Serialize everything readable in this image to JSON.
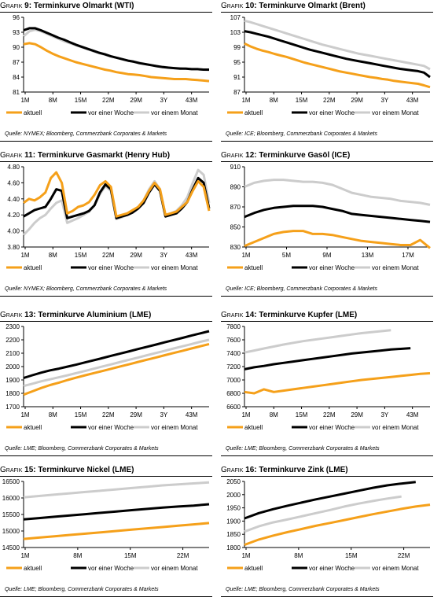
{
  "colors": {
    "aktuell": "#f5a01a",
    "woche": "#000000",
    "monat": "#cccccc",
    "grid": "#bfbfbf"
  },
  "title_prefix": "Grafik",
  "charts": [
    {
      "number": "9:",
      "title": "Terminkurve Olmarkt (WTI)",
      "source": "Quelle: NYMEX; Bloomberg, Commerzbank Corporates & Markets",
      "chart_data": {
        "type": "line",
        "xticks": [
          "1M",
          "8M",
          "15M",
          "22M",
          "29M",
          "3Y",
          "43M"
        ],
        "yticks": [
          81,
          84,
          87,
          90,
          93,
          96
        ],
        "ylim": [
          81,
          96
        ],
        "legend": [
          "aktuell",
          "vor einer Woche",
          "vor einem Monat"
        ],
        "series": [
          {
            "key": "aktuell",
            "values": [
              90.6,
              90.8,
              90.6,
              90.0,
              89.3,
              88.7,
              88.2,
              87.8,
              87.4,
              87.0,
              86.7,
              86.4,
              86.1,
              85.8,
              85.5,
              85.3,
              85.0,
              84.8,
              84.6,
              84.5,
              84.4,
              84.2,
              84.0,
              83.9,
              83.8,
              83.7,
              83.6,
              83.6,
              83.6,
              83.5,
              83.4,
              83.3,
              83.2
            ]
          },
          {
            "key": "woche",
            "values": [
              93.4,
              93.8,
              93.8,
              93.4,
              92.9,
              92.4,
              91.9,
              91.5,
              91.0,
              90.5,
              90.1,
              89.7,
              89.3,
              88.9,
              88.6,
              88.2,
              87.9,
              87.6,
              87.3,
              87.1,
              86.8,
              86.6,
              86.4,
              86.2,
              86.0,
              85.9,
              85.8,
              85.7,
              85.7,
              85.6,
              85.6,
              85.5,
              85.5
            ]
          },
          {
            "key": "monat",
            "values": [
              92.2,
              93.2,
              93.5,
              93.2,
              92.7,
              92.2,
              91.7,
              91.2,
              90.8,
              90.4,
              90.0,
              89.6,
              89.2,
              88.8,
              88.5,
              88.2,
              87.9,
              87.6,
              87.3,
              87.1,
              86.9,
              86.6,
              86.4,
              86.2,
              86.1,
              85.9,
              85.8,
              85.8,
              85.7,
              85.6,
              85.6,
              85.5,
              85.4
            ]
          }
        ]
      }
    },
    {
      "number": "10:",
      "title": "Terminkurve Olmarkt (Brent)",
      "source": "Quelle: ICE; Bloomberg, Commerzbank Corporates & Markets",
      "chart_data": {
        "type": "line",
        "xticks": [
          "1M",
          "8M",
          "15M",
          "22M",
          "29M",
          "3Y",
          "43M"
        ],
        "yticks": [
          87,
          91,
          95,
          99,
          103,
          107
        ],
        "ylim": [
          87,
          107
        ],
        "legend": [
          "aktuell",
          "vor einer Woche",
          "vor einem Monat"
        ],
        "series": [
          {
            "key": "aktuell",
            "values": [
              100.0,
              99.2,
              98.6,
              98.1,
              97.7,
              97.2,
              96.8,
              96.4,
              95.9,
              95.4,
              94.9,
              94.5,
              94.1,
              93.7,
              93.3,
              92.9,
              92.5,
              92.2,
              91.9,
              91.6,
              91.3,
              91.0,
              90.8,
              90.5,
              90.3,
              90.0,
              89.8,
              89.6,
              89.4,
              89.2,
              88.8,
              88.3
            ]
          },
          {
            "key": "woche",
            "values": [
              103.3,
              103.0,
              102.6,
              102.2,
              101.8,
              101.3,
              100.8,
              100.3,
              99.8,
              99.3,
              98.8,
              98.3,
              97.9,
              97.5,
              97.1,
              96.7,
              96.3,
              95.9,
              95.6,
              95.3,
              95.0,
              94.7,
              94.4,
              94.1,
              93.8,
              93.5,
              93.2,
              93.0,
              92.8,
              92.6,
              92.2,
              91.0
            ]
          },
          {
            "key": "monat",
            "values": [
              106.1,
              105.7,
              105.2,
              104.7,
              104.2,
              103.7,
              103.2,
              102.7,
              102.2,
              101.7,
              101.2,
              100.7,
              100.2,
              99.7,
              99.3,
              98.9,
              98.5,
              98.1,
              97.7,
              97.3,
              97.0,
              96.7,
              96.4,
              96.1,
              95.8,
              95.5,
              95.2,
              94.9,
              94.6,
              94.3,
              94.0,
              93.1
            ]
          }
        ]
      }
    },
    {
      "number": "11:",
      "title": "Terminkurve Gasmarkt (Henry Hub)",
      "source": "Quelle: NYMEX; Bloomberg, Commerzbank Corporates & Markets",
      "chart_data": {
        "type": "line",
        "xticks": [
          "1M",
          "8M",
          "15M",
          "22M",
          "29M",
          "3Y",
          "43M"
        ],
        "yticks": [
          3.8,
          4.0,
          4.2,
          4.4,
          4.6,
          4.8
        ],
        "yfmt": 2,
        "ylim": [
          3.8,
          4.8
        ],
        "legend": [
          "aktuell",
          "vor einer Woche",
          "vor einem Monat"
        ],
        "series": [
          {
            "key": "aktuell",
            "values": [
              4.35,
              4.4,
              4.38,
              4.42,
              4.48,
              4.66,
              4.73,
              4.6,
              4.22,
              4.25,
              4.3,
              4.32,
              4.36,
              4.45,
              4.57,
              4.62,
              4.55,
              4.18,
              4.2,
              4.22,
              4.26,
              4.3,
              4.38,
              4.5,
              4.6,
              4.52,
              4.2,
              4.22,
              4.24,
              4.3,
              4.36,
              4.5,
              4.62,
              4.55,
              4.25
            ]
          },
          {
            "key": "woche",
            "values": [
              4.18,
              4.22,
              4.26,
              4.28,
              4.3,
              4.4,
              4.52,
              4.5,
              4.16,
              4.18,
              4.2,
              4.22,
              4.25,
              4.32,
              4.48,
              4.58,
              4.52,
              4.16,
              4.18,
              4.2,
              4.23,
              4.28,
              4.35,
              4.48,
              4.58,
              4.5,
              4.18,
              4.2,
              4.22,
              4.28,
              4.36,
              4.52,
              4.66,
              4.6,
              4.28
            ]
          },
          {
            "key": "monat",
            "values": [
              3.95,
              4.02,
              4.1,
              4.16,
              4.2,
              4.28,
              4.35,
              4.38,
              4.1,
              4.13,
              4.16,
              4.2,
              4.24,
              4.32,
              4.46,
              4.56,
              4.5,
              4.15,
              4.17,
              4.2,
              4.25,
              4.3,
              4.38,
              4.52,
              4.62,
              4.52,
              4.2,
              4.22,
              4.25,
              4.32,
              4.42,
              4.6,
              4.76,
              4.7,
              4.35
            ]
          }
        ]
      }
    },
    {
      "number": "12:",
      "title": "Terminkurve Gasöl (ICE)",
      "source": "Quelle: ICE; Bloomberg, Commerzbank Corporates & Markets",
      "chart_data": {
        "type": "line",
        "xticks": [
          "1M",
          "5M",
          "9M",
          "13M",
          "17M"
        ],
        "yticks": [
          830,
          850,
          870,
          890,
          910
        ],
        "ylim": [
          830,
          910
        ],
        "legend": [
          "aktuell",
          "vor einer Woche",
          "vor einem Monat"
        ],
        "series": [
          {
            "key": "aktuell",
            "values": [
              831,
              835,
              839,
              843,
              845,
              846,
              846,
              843,
              843,
              842,
              840,
              838,
              836,
              835,
              834,
              833,
              832,
              832,
              837,
              829
            ]
          },
          {
            "key": "woche",
            "values": [
              860,
              864,
              867,
              869,
              870,
              871,
              871,
              871,
              870,
              868,
              866,
              863,
              862,
              861,
              860,
              859,
              858,
              857,
              856,
              855
            ]
          },
          {
            "key": "monat",
            "values": [
              890,
              894,
              896,
              897,
              897,
              896,
              895,
              895,
              894,
              892,
              888,
              884,
              882,
              880,
              879,
              878,
              876,
              875,
              874,
              872
            ]
          }
        ]
      }
    },
    {
      "number": "13:",
      "title": "Terminkurve Aluminium (LME)",
      "source": "Quelle: LME; Bloomberg, Commerzbank Corporates & Markets",
      "chart_data": {
        "type": "line",
        "xticks": [
          "1M",
          "8M",
          "15M",
          "22M",
          "29M",
          "3Y",
          "43M"
        ],
        "yticks": [
          1700,
          1800,
          1900,
          2000,
          2100,
          2200,
          2300
        ],
        "ylim": [
          1700,
          2300
        ],
        "legend": [
          "aktuell",
          "vor einer Woche",
          "vor einem Monat"
        ],
        "series": [
          {
            "key": "aktuell",
            "values": [
              1790,
              1815,
              1840,
              1862,
              1880,
              1900,
              1918,
              1935,
              1952,
              1968,
              1985,
              2002,
              2018,
              2035,
              2052,
              2068,
              2085,
              2102,
              2118,
              2135,
              2152,
              2168
            ]
          },
          {
            "key": "woche",
            "values": [
              1915,
              1935,
              1955,
              1972,
              1985,
              2000,
              2015,
              2032,
              2048,
              2065,
              2082,
              2098,
              2115,
              2132,
              2148,
              2165,
              2182,
              2198,
              2215,
              2232,
              2248,
              2265
            ]
          },
          {
            "key": "monat",
            "values": [
              1855,
              1872,
              1890,
              1905,
              1920,
              1935,
              1952,
              1968,
              1985,
              2002,
              2018,
              2035,
              2052,
              2068,
              2085,
              2102,
              2118,
              2135,
              2152,
              2168,
              2185,
              2200
            ]
          }
        ]
      }
    },
    {
      "number": "14:",
      "title": "Terminkurve Kupfer (LME)",
      "source": "Quelle: LME; Bloomberg, Commerzbank Corporates & Markets",
      "chart_data": {
        "type": "line",
        "xticks": [
          "1M",
          "8M",
          "15M",
          "22M",
          "29M",
          "3Y",
          "43M"
        ],
        "yticks": [
          6600,
          6800,
          7000,
          7200,
          7400,
          7600,
          7800
        ],
        "ylim": [
          6600,
          7800
        ],
        "legend": [
          "aktuell",
          "vor einer Woche",
          "vor einem Monat"
        ],
        "series": [
          {
            "key": "aktuell",
            "values": [
              6820,
              6800,
              6860,
              6820,
              6840,
              6860,
              6880,
              6900,
              6920,
              6940,
              6960,
              6980,
              7000,
              7015,
              7030,
              7045,
              7060,
              7075,
              7090,
              7100
            ]
          },
          {
            "key": "woche",
            "values": [
              7160,
              7190,
              7210,
              7235,
              7255,
              7275,
              7295,
              7315,
              7335,
              7355,
              7375,
              7395,
              7410,
              7425,
              7440,
              7455,
              7465,
              7475
            ]
          },
          {
            "key": "monat",
            "values": [
              7410,
              7440,
              7470,
              7500,
              7530,
              7555,
              7580,
              7600,
              7620,
              7640,
              7660,
              7680,
              7700,
              7715,
              7730,
              7745
            ]
          }
        ]
      }
    },
    {
      "number": "15:",
      "title": "Terminkurve Nickel (LME)",
      "source": "Quelle: LME; Bloomberg, Commerzbank Corporates & Markets",
      "chart_data": {
        "type": "line",
        "xticks": [
          "1M",
          "8M",
          "15M",
          "22M"
        ],
        "yticks": [
          14500,
          15000,
          15500,
          16000,
          16500
        ],
        "ylim": [
          14500,
          16500
        ],
        "legend": [
          "aktuell",
          "vor einer Woche",
          "vor einem Monat"
        ],
        "series": [
          {
            "key": "aktuell",
            "values": [
              14760,
              14800,
              14840,
              14880,
              14920,
              14960,
              15000,
              15040,
              15080,
              15120,
              15160,
              15200,
              15240
            ]
          },
          {
            "key": "woche",
            "values": [
              15350,
              15390,
              15430,
              15470,
              15510,
              15550,
              15590,
              15630,
              15670,
              15710,
              15740,
              15770,
              15810
            ]
          },
          {
            "key": "monat",
            "values": [
              16020,
              16060,
              16100,
              16140,
              16180,
              16220,
              16260,
              16300,
              16340,
              16380,
              16410,
              16440,
              16470
            ]
          }
        ]
      }
    },
    {
      "number": "16:",
      "title": "Terminkurve Zink (LME)",
      "source": "Quelle: LME; Bloomberg, Commerzbank Corporates & Markets",
      "chart_data": {
        "type": "line",
        "xticks": [
          "1M",
          "8M",
          "15M",
          "22M"
        ],
        "yticks": [
          1800,
          1850,
          1900,
          1950,
          2000,
          2050
        ],
        "ylim": [
          1800,
          2050
        ],
        "legend": [
          "aktuell",
          "vor einer Woche",
          "vor einem Monat"
        ],
        "series": [
          {
            "key": "aktuell",
            "values": [
              1810,
              1830,
              1845,
              1858,
              1870,
              1882,
              1893,
              1904,
              1915,
              1926,
              1936,
              1946,
              1955,
              1962
            ]
          },
          {
            "key": "woche",
            "values": [
              1910,
              1930,
              1945,
              1958,
              1970,
              1982,
              1993,
              2004,
              2015,
              2026,
              2035,
              2042,
              2048
            ]
          },
          {
            "key": "monat",
            "values": [
              1860,
              1880,
              1895,
              1906,
              1918,
              1930,
              1942,
              1955,
              1966,
              1976,
              1985,
              1993
            ]
          }
        ]
      }
    }
  ]
}
